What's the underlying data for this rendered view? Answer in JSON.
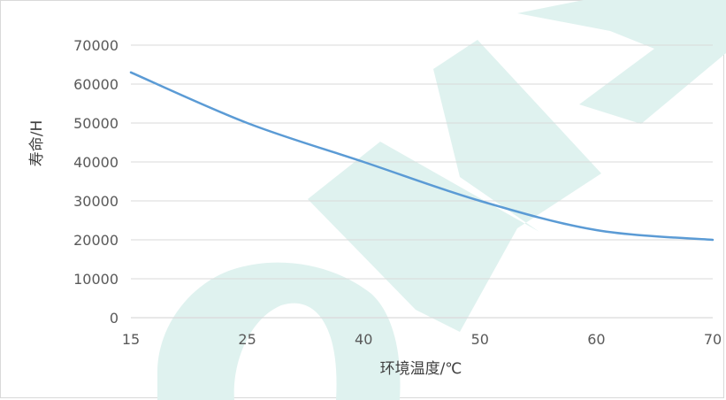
{
  "chart_data": {
    "type": "line",
    "xlabel": "环境温度/℃",
    "ylabel": "寿命/H",
    "x_ticks": [
      15,
      25,
      40,
      50,
      60,
      70
    ],
    "y_ticks": [
      0,
      10000,
      20000,
      30000,
      40000,
      50000,
      60000,
      70000
    ],
    "ylim": [
      0,
      70000
    ],
    "grid": true,
    "series": [
      {
        "color": "#5b9bd5",
        "x": [
          15,
          25,
          40,
          50,
          60,
          70
        ],
        "y": [
          63000,
          50000,
          40000,
          30000,
          22500,
          20000
        ]
      }
    ]
  },
  "colors": {
    "line": "#5b9bd5",
    "grid": "#d9d9d9",
    "watermark": "#dff2ef"
  },
  "watermark_text": "ONE"
}
